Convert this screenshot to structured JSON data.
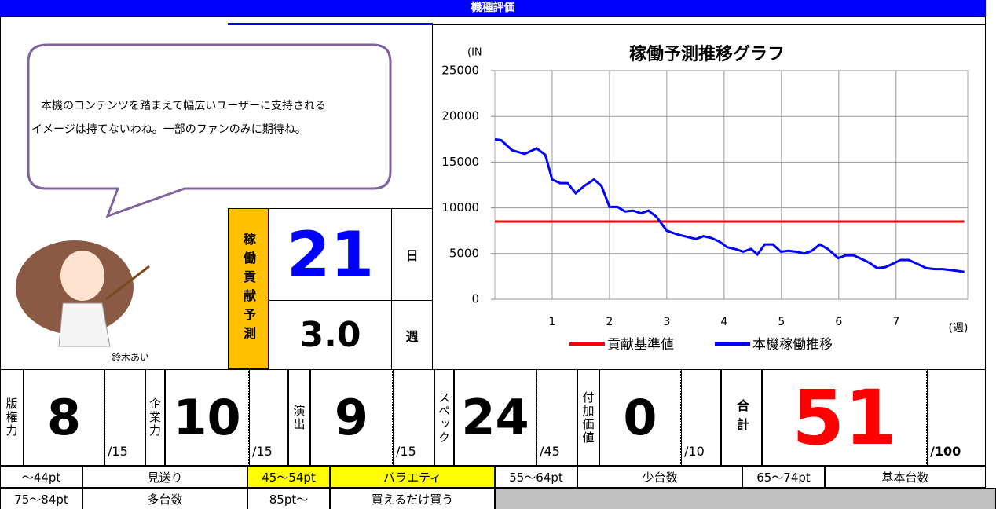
{
  "header": {
    "title": "機種評価"
  },
  "speech": {
    "lines": [
      "本機のコンテンツを踏まえて幅広いユーザーに支持される",
      "イメージは持てないわね。一部のファンのみに期待ね。"
    ]
  },
  "character": {
    "name": "鈴木あい"
  },
  "prediction": {
    "label": "稼働貢献予測",
    "days": 21,
    "days_unit": "日",
    "weeks": "3.0",
    "weeks_unit": "週"
  },
  "chart_data": {
    "type": "line",
    "title": "稼働予測推移グラフ",
    "y_label": "(IN",
    "x_label": "(週)",
    "xlim": [
      0,
      8.25
    ],
    "xticks": [
      1,
      2,
      3,
      4,
      5,
      6,
      7
    ],
    "ylim": [
      0,
      25000
    ],
    "yticks": [
      0,
      5000,
      10000,
      15000,
      20000,
      25000
    ],
    "grid": true,
    "legend": "bottom",
    "series": [
      {
        "name": "貢献基準値",
        "color": "#ff0000",
        "x": [
          0,
          8.19
        ],
        "values": [
          8500,
          8500
        ]
      },
      {
        "name": "本機稼働推移",
        "color": "#0000ff",
        "x": [
          0,
          0.11,
          0.3,
          0.52,
          0.73,
          0.88,
          1.0,
          1.14,
          1.27,
          1.41,
          1.56,
          1.73,
          1.86,
          2.0,
          2.14,
          2.27,
          2.41,
          2.55,
          2.68,
          2.82,
          3.0,
          3.18,
          3.37,
          3.51,
          3.64,
          3.78,
          3.92,
          4.05,
          4.19,
          4.33,
          4.47,
          4.58,
          4.71,
          4.85,
          4.99,
          5.12,
          5.26,
          5.4,
          5.53,
          5.67,
          5.81,
          5.99,
          6.12,
          6.26,
          6.4,
          6.53,
          6.67,
          6.81,
          6.95,
          7.08,
          7.22,
          7.36,
          7.53,
          7.67,
          7.81,
          7.95,
          8.19
        ],
        "values": [
          17500,
          17400,
          16300,
          15900,
          16500,
          15800,
          13100,
          12700,
          12700,
          11600,
          12400,
          13100,
          12400,
          10100,
          10100,
          9600,
          9700,
          9400,
          9700,
          9000,
          7500,
          7100,
          6800,
          6600,
          6900,
          6700,
          6300,
          5700,
          5500,
          5200,
          5500,
          4900,
          6000,
          6000,
          5200,
          5300,
          5200,
          5000,
          5300,
          6000,
          5500,
          4500,
          4800,
          4800,
          4400,
          4000,
          3400,
          3500,
          3900,
          4300,
          4300,
          3900,
          3400,
          3300,
          3300,
          3200,
          3000
        ]
      }
    ]
  },
  "scores": {
    "items": [
      {
        "label": "版権力",
        "value": 8,
        "max": "/15"
      },
      {
        "label": "企業力",
        "value": 10,
        "max": "/15"
      },
      {
        "label": "演出",
        "value": 9,
        "max": "/15"
      },
      {
        "label": "スペック",
        "value": 24,
        "max": "/45"
      },
      {
        "label": "付加価値",
        "value": 0,
        "max": "/10"
      }
    ],
    "total": {
      "label": "合計",
      "value": 51,
      "max": "/100"
    }
  },
  "table": {
    "rows": [
      [
        "～44pt",
        "見送り",
        "45～54pt",
        "バラエティ",
        "55～64pt",
        "少台数",
        "65～74pt",
        "基本台数"
      ],
      [
        "75～84pt",
        "多台数",
        "85pt～",
        "買えるだけ買う"
      ]
    ],
    "highlighted_cells": [
      [
        0,
        2
      ],
      [
        0,
        3
      ]
    ],
    "highlight_color": "#ffff00"
  }
}
